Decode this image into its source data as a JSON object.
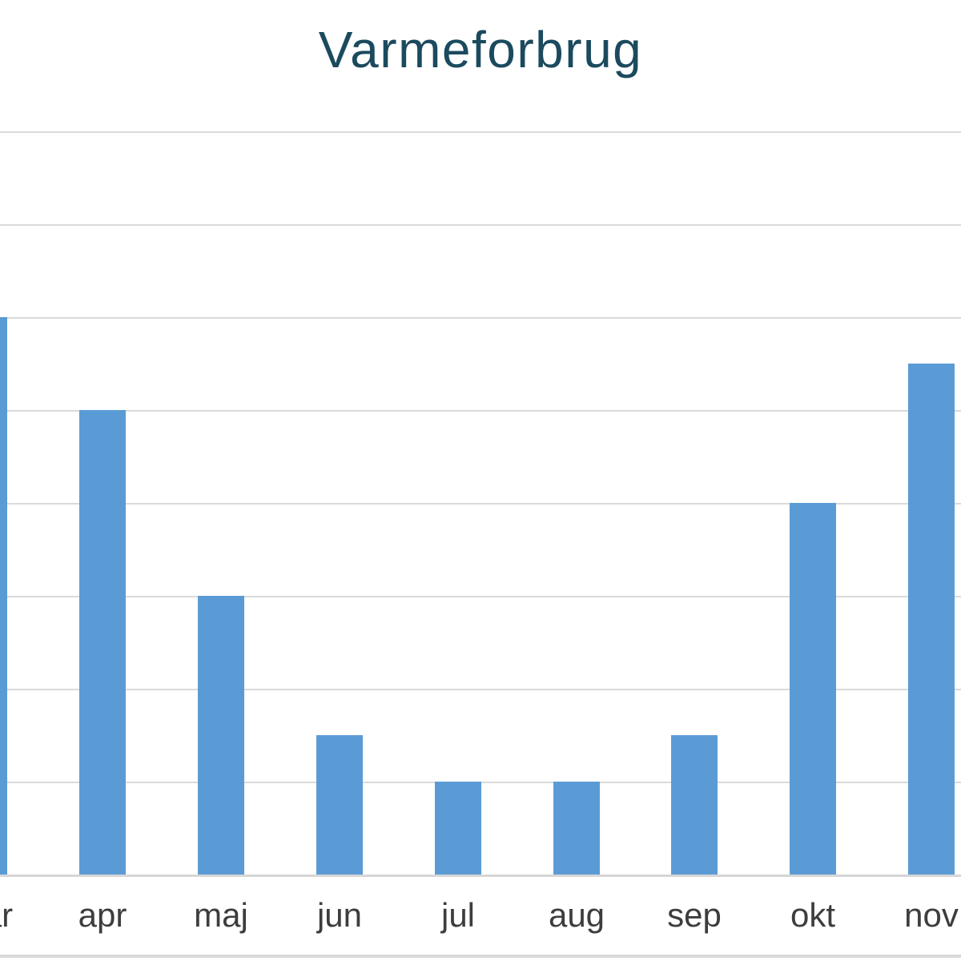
{
  "chart_data": {
    "type": "bar",
    "title": "Varmeforbrug",
    "categories": [
      "mar",
      "apr",
      "maj",
      "jun",
      "jul",
      "aug",
      "sep",
      "okt",
      "nov"
    ],
    "values": [
      6,
      5,
      3,
      1.5,
      1,
      1,
      1.5,
      4,
      5.5
    ],
    "xlabel": "",
    "ylabel": "",
    "ylim": [
      0,
      8.2
    ],
    "grid": true,
    "legend_position": "none",
    "y_tick_labels_visible": false,
    "first_category_clipped": true
  },
  "colors": {
    "bar": "#5b9bd5",
    "title": "#1b4a5e",
    "gridline": "#dadada",
    "axis_line": "#d6d6d6",
    "x_label": "#3d3d3d",
    "bottom_divider": "#d9d9d9"
  }
}
